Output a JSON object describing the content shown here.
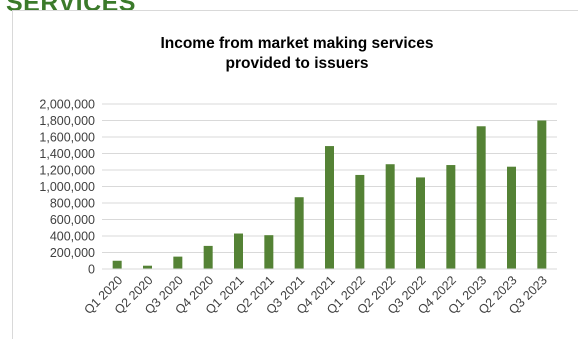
{
  "heading": "SERVICES",
  "chart_data": {
    "type": "bar",
    "title_lines": [
      "Income from market making services",
      "provided to issuers"
    ],
    "categories": [
      "Q1 2020",
      "Q2 2020",
      "Q3 2020",
      "Q4 2020",
      "Q1 2021",
      "Q2 2021",
      "Q3 2021",
      "Q4 2021",
      "Q1 2022",
      "Q2 2022",
      "Q3 2022",
      "Q4 2022",
      "Q1 2023",
      "Q2 2023",
      "Q3 2023"
    ],
    "values": [
      100000,
      40000,
      150000,
      280000,
      430000,
      410000,
      870000,
      1490000,
      1140000,
      1270000,
      1110000,
      1260000,
      1730000,
      1240000,
      1800000
    ],
    "yticks": [
      "0",
      "200,000",
      "400,000",
      "600,000",
      "800,000",
      "1,000,000",
      "1,200,000",
      "1,400,000",
      "1,600,000",
      "1,800,000",
      "2,000,000"
    ],
    "ylim": [
      0,
      2000000
    ],
    "grid": true,
    "legend": "none",
    "bar_color": "#548235",
    "grid_color": "#d9d9d9"
  }
}
